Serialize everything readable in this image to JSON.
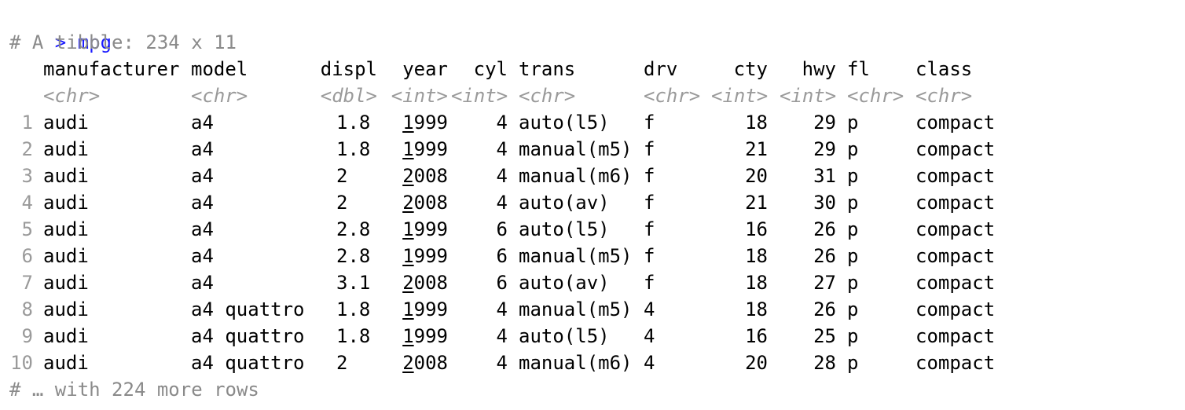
{
  "console": {
    "prompt_symbol": ">",
    "command": "mpg",
    "tibble_header": "# A tibble: 234 x 11",
    "footer": "# … with 224 more rows"
  },
  "table": {
    "columns": [
      {
        "name": "manufacturer",
        "type": "<chr>"
      },
      {
        "name": "model",
        "type": "<chr>"
      },
      {
        "name": "displ",
        "type": "<dbl>"
      },
      {
        "name": "year",
        "type": "<int>"
      },
      {
        "name": "cyl",
        "type": "<int>"
      },
      {
        "name": "trans",
        "type": "<chr>"
      },
      {
        "name": "drv",
        "type": "<chr>"
      },
      {
        "name": "cty",
        "type": "<int>"
      },
      {
        "name": "hwy",
        "type": "<int>"
      },
      {
        "name": "fl",
        "type": "<chr>"
      },
      {
        "name": "class",
        "type": "<chr>"
      }
    ],
    "rows": [
      {
        "idx": "1",
        "manufacturer": "audi",
        "model": "a4",
        "displ": "1.8",
        "year_lead": "1",
        "year_rest": "999",
        "cyl": "4",
        "trans": "auto(l5)",
        "drv": "f",
        "cty": "18",
        "hwy": "29",
        "fl": "p",
        "class": "compact"
      },
      {
        "idx": "2",
        "manufacturer": "audi",
        "model": "a4",
        "displ": "1.8",
        "year_lead": "1",
        "year_rest": "999",
        "cyl": "4",
        "trans": "manual(m5)",
        "drv": "f",
        "cty": "21",
        "hwy": "29",
        "fl": "p",
        "class": "compact"
      },
      {
        "idx": "3",
        "manufacturer": "audi",
        "model": "a4",
        "displ": "2",
        "year_lead": "2",
        "year_rest": "008",
        "cyl": "4",
        "trans": "manual(m6)",
        "drv": "f",
        "cty": "20",
        "hwy": "31",
        "fl": "p",
        "class": "compact"
      },
      {
        "idx": "4",
        "manufacturer": "audi",
        "model": "a4",
        "displ": "2",
        "year_lead": "2",
        "year_rest": "008",
        "cyl": "4",
        "trans": "auto(av)",
        "drv": "f",
        "cty": "21",
        "hwy": "30",
        "fl": "p",
        "class": "compact"
      },
      {
        "idx": "5",
        "manufacturer": "audi",
        "model": "a4",
        "displ": "2.8",
        "year_lead": "1",
        "year_rest": "999",
        "cyl": "6",
        "trans": "auto(l5)",
        "drv": "f",
        "cty": "16",
        "hwy": "26",
        "fl": "p",
        "class": "compact"
      },
      {
        "idx": "6",
        "manufacturer": "audi",
        "model": "a4",
        "displ": "2.8",
        "year_lead": "1",
        "year_rest": "999",
        "cyl": "6",
        "trans": "manual(m5)",
        "drv": "f",
        "cty": "18",
        "hwy": "26",
        "fl": "p",
        "class": "compact"
      },
      {
        "idx": "7",
        "manufacturer": "audi",
        "model": "a4",
        "displ": "3.1",
        "year_lead": "2",
        "year_rest": "008",
        "cyl": "6",
        "trans": "auto(av)",
        "drv": "f",
        "cty": "18",
        "hwy": "27",
        "fl": "p",
        "class": "compact"
      },
      {
        "idx": "8",
        "manufacturer": "audi",
        "model": "a4 quattro",
        "displ": "1.8",
        "year_lead": "1",
        "year_rest": "999",
        "cyl": "4",
        "trans": "manual(m5)",
        "drv": "4",
        "cty": "18",
        "hwy": "26",
        "fl": "p",
        "class": "compact"
      },
      {
        "idx": "9",
        "manufacturer": "audi",
        "model": "a4 quattro",
        "displ": "1.8",
        "year_lead": "1",
        "year_rest": "999",
        "cyl": "4",
        "trans": "auto(l5)",
        "drv": "4",
        "cty": "16",
        "hwy": "25",
        "fl": "p",
        "class": "compact"
      },
      {
        "idx": "10",
        "manufacturer": "audi",
        "model": "a4 quattro",
        "displ": "2",
        "year_lead": "2",
        "year_rest": "008",
        "cyl": "4",
        "trans": "manual(m6)",
        "drv": "4",
        "cty": "20",
        "hwy": "28",
        "fl": "p",
        "class": "compact"
      }
    ]
  },
  "colors": {
    "prompt": "#1a1aff",
    "comment": "#8a8a8a",
    "type_label": "#9a9a9a",
    "text": "#000000"
  }
}
